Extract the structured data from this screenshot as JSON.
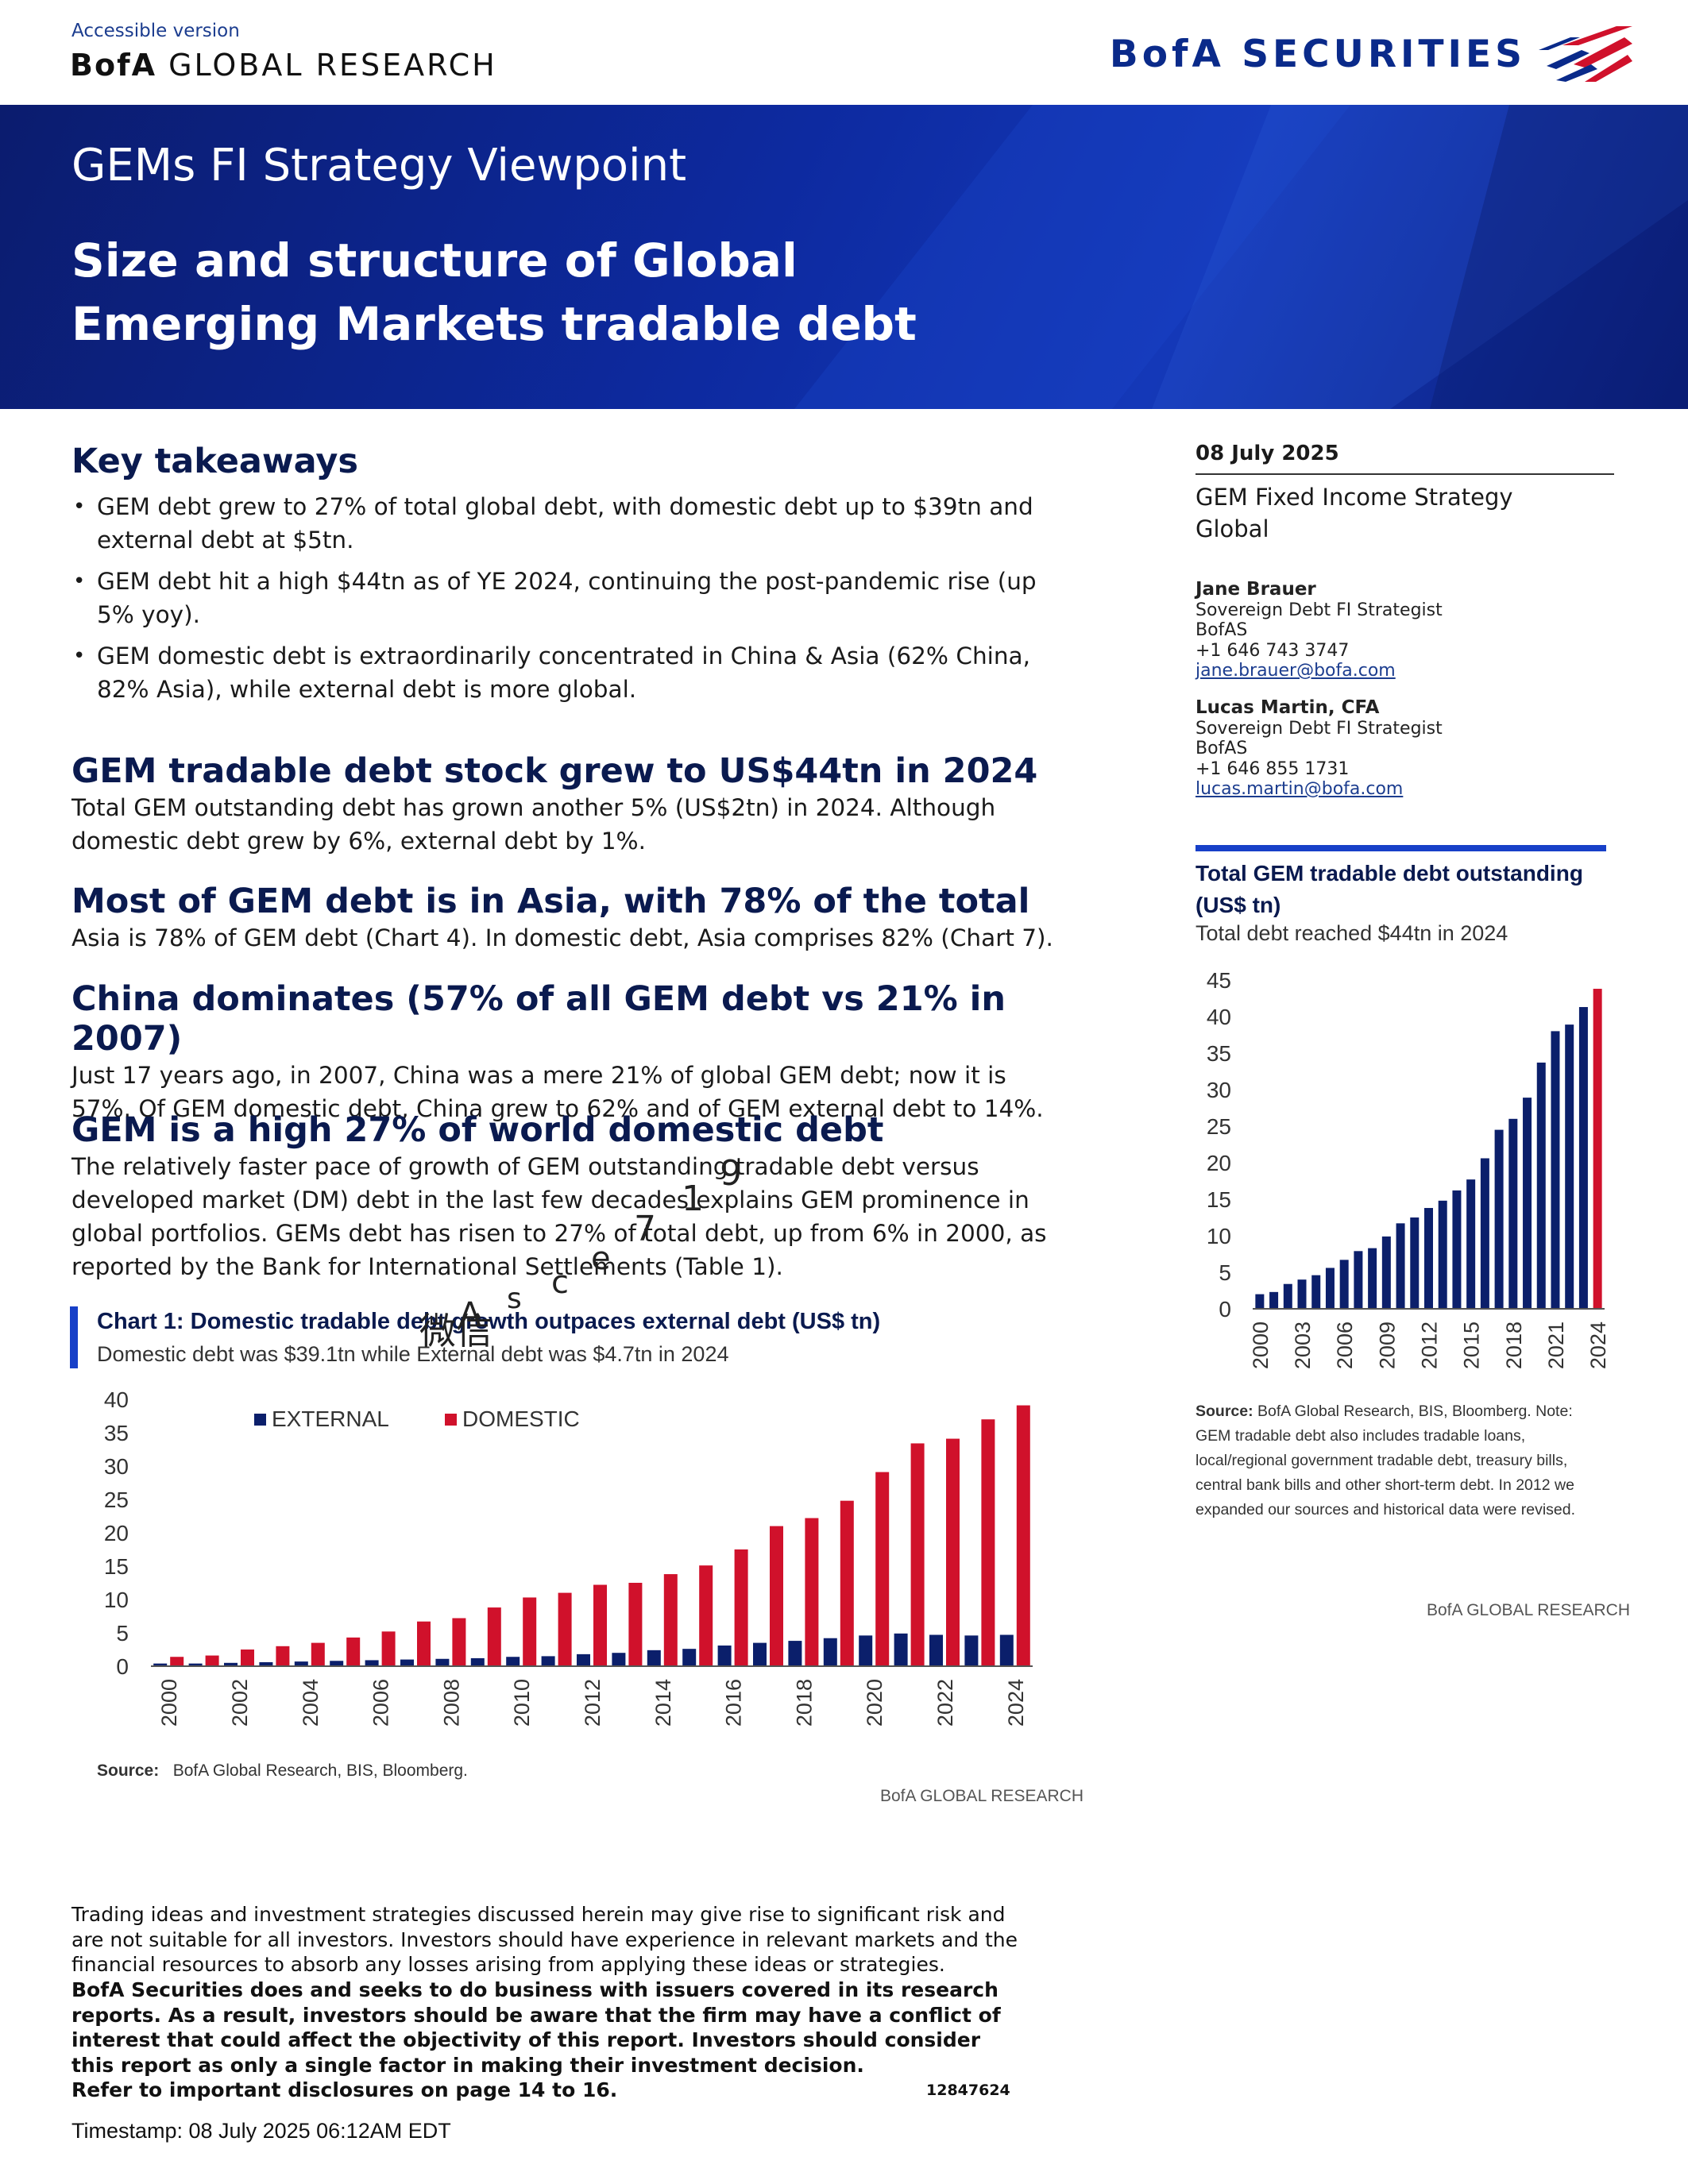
{
  "header": {
    "accessible_link": "Accessible version",
    "brand_prefix": "BofA",
    "brand_rest": "GLOBAL RESEARCH",
    "logo_text": "BofA SECURITIES"
  },
  "banner": {
    "series": "GEMs FI Strategy Viewpoint",
    "title": "Size and structure of Global Emerging Markets tradable debt"
  },
  "key_takeaways": {
    "title": "Key takeaways",
    "items": [
      "GEM debt grew to 27% of total global debt, with domestic debt up to $39tn and external debt at $5tn.",
      "GEM debt hit a high $44tn as of YE 2024, continuing the post-pandemic rise (up 5% yoy).",
      "GEM domestic debt is extraordinarily concentrated in China & Asia (62% China, 82% Asia), while external debt is more global."
    ]
  },
  "sections": [
    {
      "heading": "GEM tradable debt stock grew to US$44tn in 2024",
      "body": "Total GEM outstanding debt has grown another 5% (US$2tn) in 2024.  Although domestic debt grew by 6%, external debt by 1%."
    },
    {
      "heading": "Most of GEM debt is in Asia, with 78% of the total",
      "body": "Asia is 78% of GEM debt (Chart 4). In domestic debt, Asia comprises 82% (Chart 7)."
    },
    {
      "heading": "China dominates (57% of all GEM debt vs 21% in 2007)",
      "body": "Just 17 years ago, in 2007, China was a mere 21% of global GEM debt; now it is 57%. Of GEM domestic debt, China grew to 62% and of GEM external debt to 14%."
    },
    {
      "heading": "GEM is a high 27% of world domestic debt",
      "body": "The relatively faster pace of growth of GEM outstanding tradable debt versus developed market (DM) debt in the last few decades explains GEM prominence in global portfolios. GEMs debt has risen to 27% of total debt, up from 6% in 2000, as reported by the Bank for International Settlements (Table 1)."
    }
  ],
  "chart1": {
    "title": "Chart 1: Domestic tradable debt growth outpaces external debt (US$ tn)",
    "subtitle": "Domestic debt was $39.1tn while External debt was $4.7tn in 2024",
    "source_label": "Source:",
    "source_text": "BofA Global Research, BIS, Bloomberg.",
    "brand": "BofA GLOBAL RESEARCH"
  },
  "chart2": {
    "title": "Total GEM tradable debt outstanding (US$ tn)",
    "subtitle": "Total debt reached $44tn in 2024",
    "source_label": "Source:",
    "source_text": "BofA Global Research, BIS, Bloomberg. Note: GEM tradable debt also includes tradable loans, local/regional government tradable debt, treasury bills, central bank bills and other short-term debt. In 2012 we expanded our sources and historical data were revised.",
    "brand": "BofA GLOBAL RESEARCH"
  },
  "chart_data": [
    {
      "type": "bar",
      "categories": [
        "2000",
        "2001",
        "2002",
        "2003",
        "2004",
        "2005",
        "2006",
        "2007",
        "2008",
        "2009",
        "2010",
        "2011",
        "2012",
        "2013",
        "2014",
        "2015",
        "2016",
        "2017",
        "2018",
        "2019",
        "2020",
        "2021",
        "2022",
        "2023",
        "2024"
      ],
      "x_tick_labels": [
        "2000",
        "2002",
        "2004",
        "2006",
        "2008",
        "2010",
        "2012",
        "2014",
        "2016",
        "2018",
        "2020",
        "2022",
        "2024"
      ],
      "series": [
        {
          "name": "EXTERNAL",
          "color": "#0b1f6b",
          "values": [
            0.4,
            0.4,
            0.5,
            0.6,
            0.7,
            0.8,
            0.9,
            1.0,
            1.1,
            1.2,
            1.4,
            1.5,
            1.8,
            2.0,
            2.4,
            2.6,
            3.1,
            3.5,
            3.8,
            4.2,
            4.6,
            4.9,
            4.7,
            4.6,
            4.7
          ]
        },
        {
          "name": "DOMESTIC",
          "color": "#d0112b",
          "values": [
            1.4,
            1.6,
            2.5,
            3.0,
            3.5,
            4.3,
            5.2,
            6.7,
            7.2,
            8.8,
            10.3,
            11.0,
            12.2,
            12.5,
            13.8,
            15.1,
            17.5,
            21.0,
            22.2,
            24.8,
            29.1,
            33.4,
            34.1,
            37.0,
            39.1
          ]
        }
      ],
      "ylim": [
        0,
        40
      ],
      "yticks": [
        0,
        5,
        10,
        15,
        20,
        25,
        30,
        35,
        40
      ],
      "legend": "top-left",
      "grid": false
    },
    {
      "type": "bar",
      "categories": [
        "2000",
        "2001",
        "2002",
        "2003",
        "2004",
        "2005",
        "2006",
        "2007",
        "2008",
        "2009",
        "2010",
        "2011",
        "2012",
        "2013",
        "2014",
        "2015",
        "2016",
        "2017",
        "2018",
        "2019",
        "2020",
        "2021",
        "2022",
        "2023",
        "2024"
      ],
      "x_tick_labels": [
        "2000",
        "2003",
        "2006",
        "2009",
        "2012",
        "2015",
        "2018",
        "2021",
        "2024"
      ],
      "series": [
        {
          "name": "",
          "color": "#0b1f6b",
          "highlight_last_color": "#d0112b",
          "values": [
            2.0,
            2.3,
            3.4,
            4.0,
            4.6,
            5.6,
            6.7,
            7.9,
            8.3,
            9.9,
            11.7,
            12.5,
            13.8,
            14.8,
            16.2,
            17.7,
            20.6,
            24.5,
            26.0,
            28.9,
            33.7,
            38.0,
            38.9,
            41.3,
            43.8
          ]
        }
      ],
      "ylim": [
        0,
        45
      ],
      "yticks": [
        0,
        5,
        10,
        15,
        20,
        25,
        30,
        35,
        40,
        45
      ],
      "grid": false
    }
  ],
  "sidebar": {
    "date": "08 July 2025",
    "strategy_line1": "GEM Fixed Income Strategy",
    "strategy_line2": "Global",
    "authors": [
      {
        "name": "Jane Brauer",
        "role": "Sovereign Debt FI Strategist",
        "firm": "BofAS",
        "phone": "+1 646 743 3747",
        "email": "jane.brauer@bofa.com"
      },
      {
        "name": "Lucas Martin, CFA",
        "role": "Sovereign Debt FI Strategist",
        "firm": "BofAS",
        "phone": "+1 646 855 1731",
        "email": "lucas.martin@bofa.com"
      }
    ]
  },
  "disclaimer": {
    "normal": "Trading ideas and investment strategies discussed herein may give rise to significant risk and are not suitable for all investors. Investors should have experience in relevant markets and the financial resources to absorb any losses arising from applying these ideas or strategies.",
    "bold": "BofA Securities does and seeks to do business with issuers covered in its research reports. As a result, investors should be aware that the firm may have a conflict of interest that could affect the objectivity of this report. Investors should consider this report as only a single factor in making their investment decision.",
    "refer": "Refer to important disclosures on page 14 to 16.",
    "doc_number": "12847624",
    "timestamp": "Timestamp: 08 July 2025 06:12AM EDT"
  },
  "watermark": [
    "微信",
    "A",
    "s",
    "c",
    "e",
    "7",
    "1",
    "9"
  ]
}
